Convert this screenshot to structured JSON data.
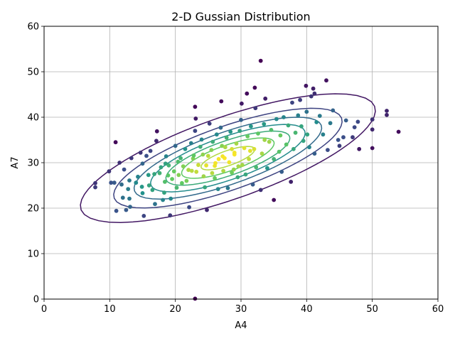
{
  "chart_data": {
    "type": "scatter",
    "title": "2-D Gussian Distribution",
    "xlabel": "A4",
    "ylabel": "A7",
    "xlim": [
      0,
      60
    ],
    "ylim": [
      0,
      60
    ],
    "xticks": [
      0,
      10,
      20,
      30,
      40,
      50,
      60
    ],
    "yticks": [
      0,
      10,
      20,
      30,
      40,
      50,
      60
    ],
    "grid": true,
    "colormap": "viridis",
    "colors": {
      "ramp": [
        "#440154",
        "#3b528b",
        "#21918c",
        "#5ec962",
        "#fde725"
      ]
    },
    "gaussian": {
      "mean": [
        28,
        31
      ],
      "sd": [
        10.0,
        6.3
      ],
      "corr": 0.74
    },
    "contour_levels": [
      0.08,
      0.22,
      0.36,
      0.5,
      0.64,
      0.78,
      0.92
    ],
    "points": [
      [
        7.8,
        25.5
      ],
      [
        7.8,
        24.6
      ],
      [
        9.9,
        28.1
      ],
      [
        10.2,
        25.6
      ],
      [
        10.7,
        25.6
      ],
      [
        10.9,
        34.5
      ],
      [
        11.0,
        19.4
      ],
      [
        11.5,
        30.0
      ],
      [
        11.8,
        25.2
      ],
      [
        12.0,
        22.3
      ],
      [
        12.2,
        28.5
      ],
      [
        12.5,
        19.6
      ],
      [
        12.8,
        24.2
      ],
      [
        13.0,
        22.1
      ],
      [
        13.1,
        20.3
      ],
      [
        13.3,
        31.0
      ],
      [
        13.0,
        26.1
      ],
      [
        14.0,
        25.6
      ],
      [
        14.3,
        26.9
      ],
      [
        14.7,
        32.2
      ],
      [
        14.9,
        24.7
      ],
      [
        15.0,
        23.3
      ],
      [
        15.0,
        29.8
      ],
      [
        15.2,
        18.3
      ],
      [
        15.9,
        27.3
      ],
      [
        15.6,
        31.5
      ],
      [
        16.2,
        32.6
      ],
      [
        16.0,
        25.0
      ],
      [
        16.5,
        24.0
      ],
      [
        16.8,
        27.5
      ],
      [
        16.9,
        20.9
      ],
      [
        17.2,
        36.9
      ],
      [
        17.1,
        34.8
      ],
      [
        17.6,
        27.7
      ],
      [
        17.8,
        29.0
      ],
      [
        18.1,
        21.8
      ],
      [
        18.3,
        23.4
      ],
      [
        18.4,
        25.8
      ],
      [
        18.5,
        29.8
      ],
      [
        18.6,
        31.4
      ],
      [
        18.9,
        27.2
      ],
      [
        19.0,
        29.4
      ],
      [
        19.2,
        18.4
      ],
      [
        19.3,
        22.1
      ],
      [
        19.5,
        26.4
      ],
      [
        19.8,
        28.1
      ],
      [
        20.0,
        33.7
      ],
      [
        20.2,
        24.5
      ],
      [
        20.5,
        27.3
      ],
      [
        20.8,
        31.0
      ],
      [
        21.0,
        25.5
      ],
      [
        21.2,
        29.2
      ],
      [
        21.5,
        33.0
      ],
      [
        21.7,
        26.0
      ],
      [
        22.0,
        28.4
      ],
      [
        22.1,
        20.2
      ],
      [
        22.4,
        34.3
      ],
      [
        22.5,
        28.2
      ],
      [
        22.7,
        30.9
      ],
      [
        23.0,
        42.3
      ],
      [
        23.1,
        39.7
      ],
      [
        23.0,
        0.1
      ],
      [
        23.0,
        37.0
      ],
      [
        23.2,
        28.0
      ],
      [
        23.5,
        29.5
      ],
      [
        23.8,
        33.5
      ],
      [
        24.0,
        35.1
      ],
      [
        24.3,
        27.0
      ],
      [
        24.5,
        24.6
      ],
      [
        24.8,
        19.6
      ],
      [
        25.0,
        31.5
      ],
      [
        25.2,
        38.6
      ],
      [
        25.5,
        32.8
      ],
      [
        25.7,
        34.6
      ],
      [
        26.0,
        26.6
      ],
      [
        26.1,
        29.9
      ],
      [
        26.3,
        36.2
      ],
      [
        26.5,
        24.2
      ],
      [
        26.9,
        37.7
      ],
      [
        27.0,
        43.5
      ],
      [
        27.1,
        33.7
      ],
      [
        27.3,
        28.2
      ],
      [
        27.5,
        31.0
      ],
      [
        27.8,
        35.5
      ],
      [
        28.0,
        24.4
      ],
      [
        28.2,
        30.1
      ],
      [
        28.4,
        36.8
      ],
      [
        28.6,
        33.0
      ],
      [
        28.9,
        28.5
      ],
      [
        29.0,
        31.8
      ],
      [
        29.3,
        34.2
      ],
      [
        29.5,
        26.8
      ],
      [
        29.8,
        37.0
      ],
      [
        30.0,
        39.4
      ],
      [
        30.1,
        43.0
      ],
      [
        30.2,
        29.5
      ],
      [
        30.5,
        33.2
      ],
      [
        30.7,
        27.4
      ],
      [
        30.9,
        45.2
      ],
      [
        31.0,
        35.8
      ],
      [
        31.2,
        30.8
      ],
      [
        31.5,
        38.0
      ],
      [
        31.8,
        25.2
      ],
      [
        32.0,
        33.0
      ],
      [
        32.1,
        46.5
      ],
      [
        32.2,
        42.0
      ],
      [
        32.3,
        29.0
      ],
      [
        32.6,
        36.4
      ],
      [
        33.0,
        24.0
      ],
      [
        33.0,
        52.4
      ],
      [
        33.2,
        32.0
      ],
      [
        33.5,
        38.5
      ],
      [
        33.7,
        44.1
      ],
      [
        34.0,
        28.8
      ],
      [
        34.3,
        34.6
      ],
      [
        34.6,
        37.2
      ],
      [
        35.0,
        21.8
      ],
      [
        35.0,
        30.8
      ],
      [
        35.4,
        39.6
      ],
      [
        35.8,
        32.4
      ],
      [
        36.0,
        36.0
      ],
      [
        36.2,
        28.0
      ],
      [
        36.5,
        40.0
      ],
      [
        36.9,
        34.0
      ],
      [
        37.2,
        38.2
      ],
      [
        37.6,
        25.8
      ],
      [
        37.8,
        43.2
      ],
      [
        38.0,
        33.0
      ],
      [
        38.3,
        36.6
      ],
      [
        38.7,
        40.4
      ],
      [
        39.0,
        43.8
      ],
      [
        39.2,
        38.0
      ],
      [
        39.5,
        34.8
      ],
      [
        39.9,
        46.9
      ],
      [
        40.0,
        41.2
      ],
      [
        40.1,
        36.2
      ],
      [
        40.4,
        33.4
      ],
      [
        40.7,
        44.6
      ],
      [
        41.0,
        46.3
      ],
      [
        41.2,
        45.2
      ],
      [
        41.2,
        32.0
      ],
      [
        41.5,
        38.9
      ],
      [
        42.0,
        40.3
      ],
      [
        42.5,
        36.2
      ],
      [
        43.0,
        48.1
      ],
      [
        43.2,
        32.8
      ],
      [
        43.6,
        38.7
      ],
      [
        44.0,
        41.5
      ],
      [
        44.8,
        35.0
      ],
      [
        45.0,
        33.7
      ],
      [
        45.6,
        35.6
      ],
      [
        46.0,
        39.3
      ],
      [
        47.0,
        35.6
      ],
      [
        47.3,
        37.8
      ],
      [
        47.8,
        39.0
      ],
      [
        48.0,
        33.0
      ],
      [
        50.0,
        39.5
      ],
      [
        50.0,
        37.3
      ],
      [
        50.0,
        33.2
      ],
      [
        52.2,
        41.4
      ],
      [
        52.2,
        40.5
      ],
      [
        54.0,
        36.8
      ],
      [
        26.0,
        29.3
      ],
      [
        24.2,
        31.8
      ],
      [
        27.6,
        33.4
      ],
      [
        29.6,
        29.2
      ],
      [
        25.6,
        27.7
      ],
      [
        31.4,
        32.6
      ],
      [
        28.6,
        27.8
      ],
      [
        22.8,
        31.6
      ],
      [
        33.6,
        35.0
      ],
      [
        20.4,
        30.2
      ],
      [
        26.6,
        30.8
      ],
      [
        29.0,
        32.2
      ],
      [
        24.7,
        29.4
      ],
      [
        27.2,
        31.4
      ]
    ]
  }
}
